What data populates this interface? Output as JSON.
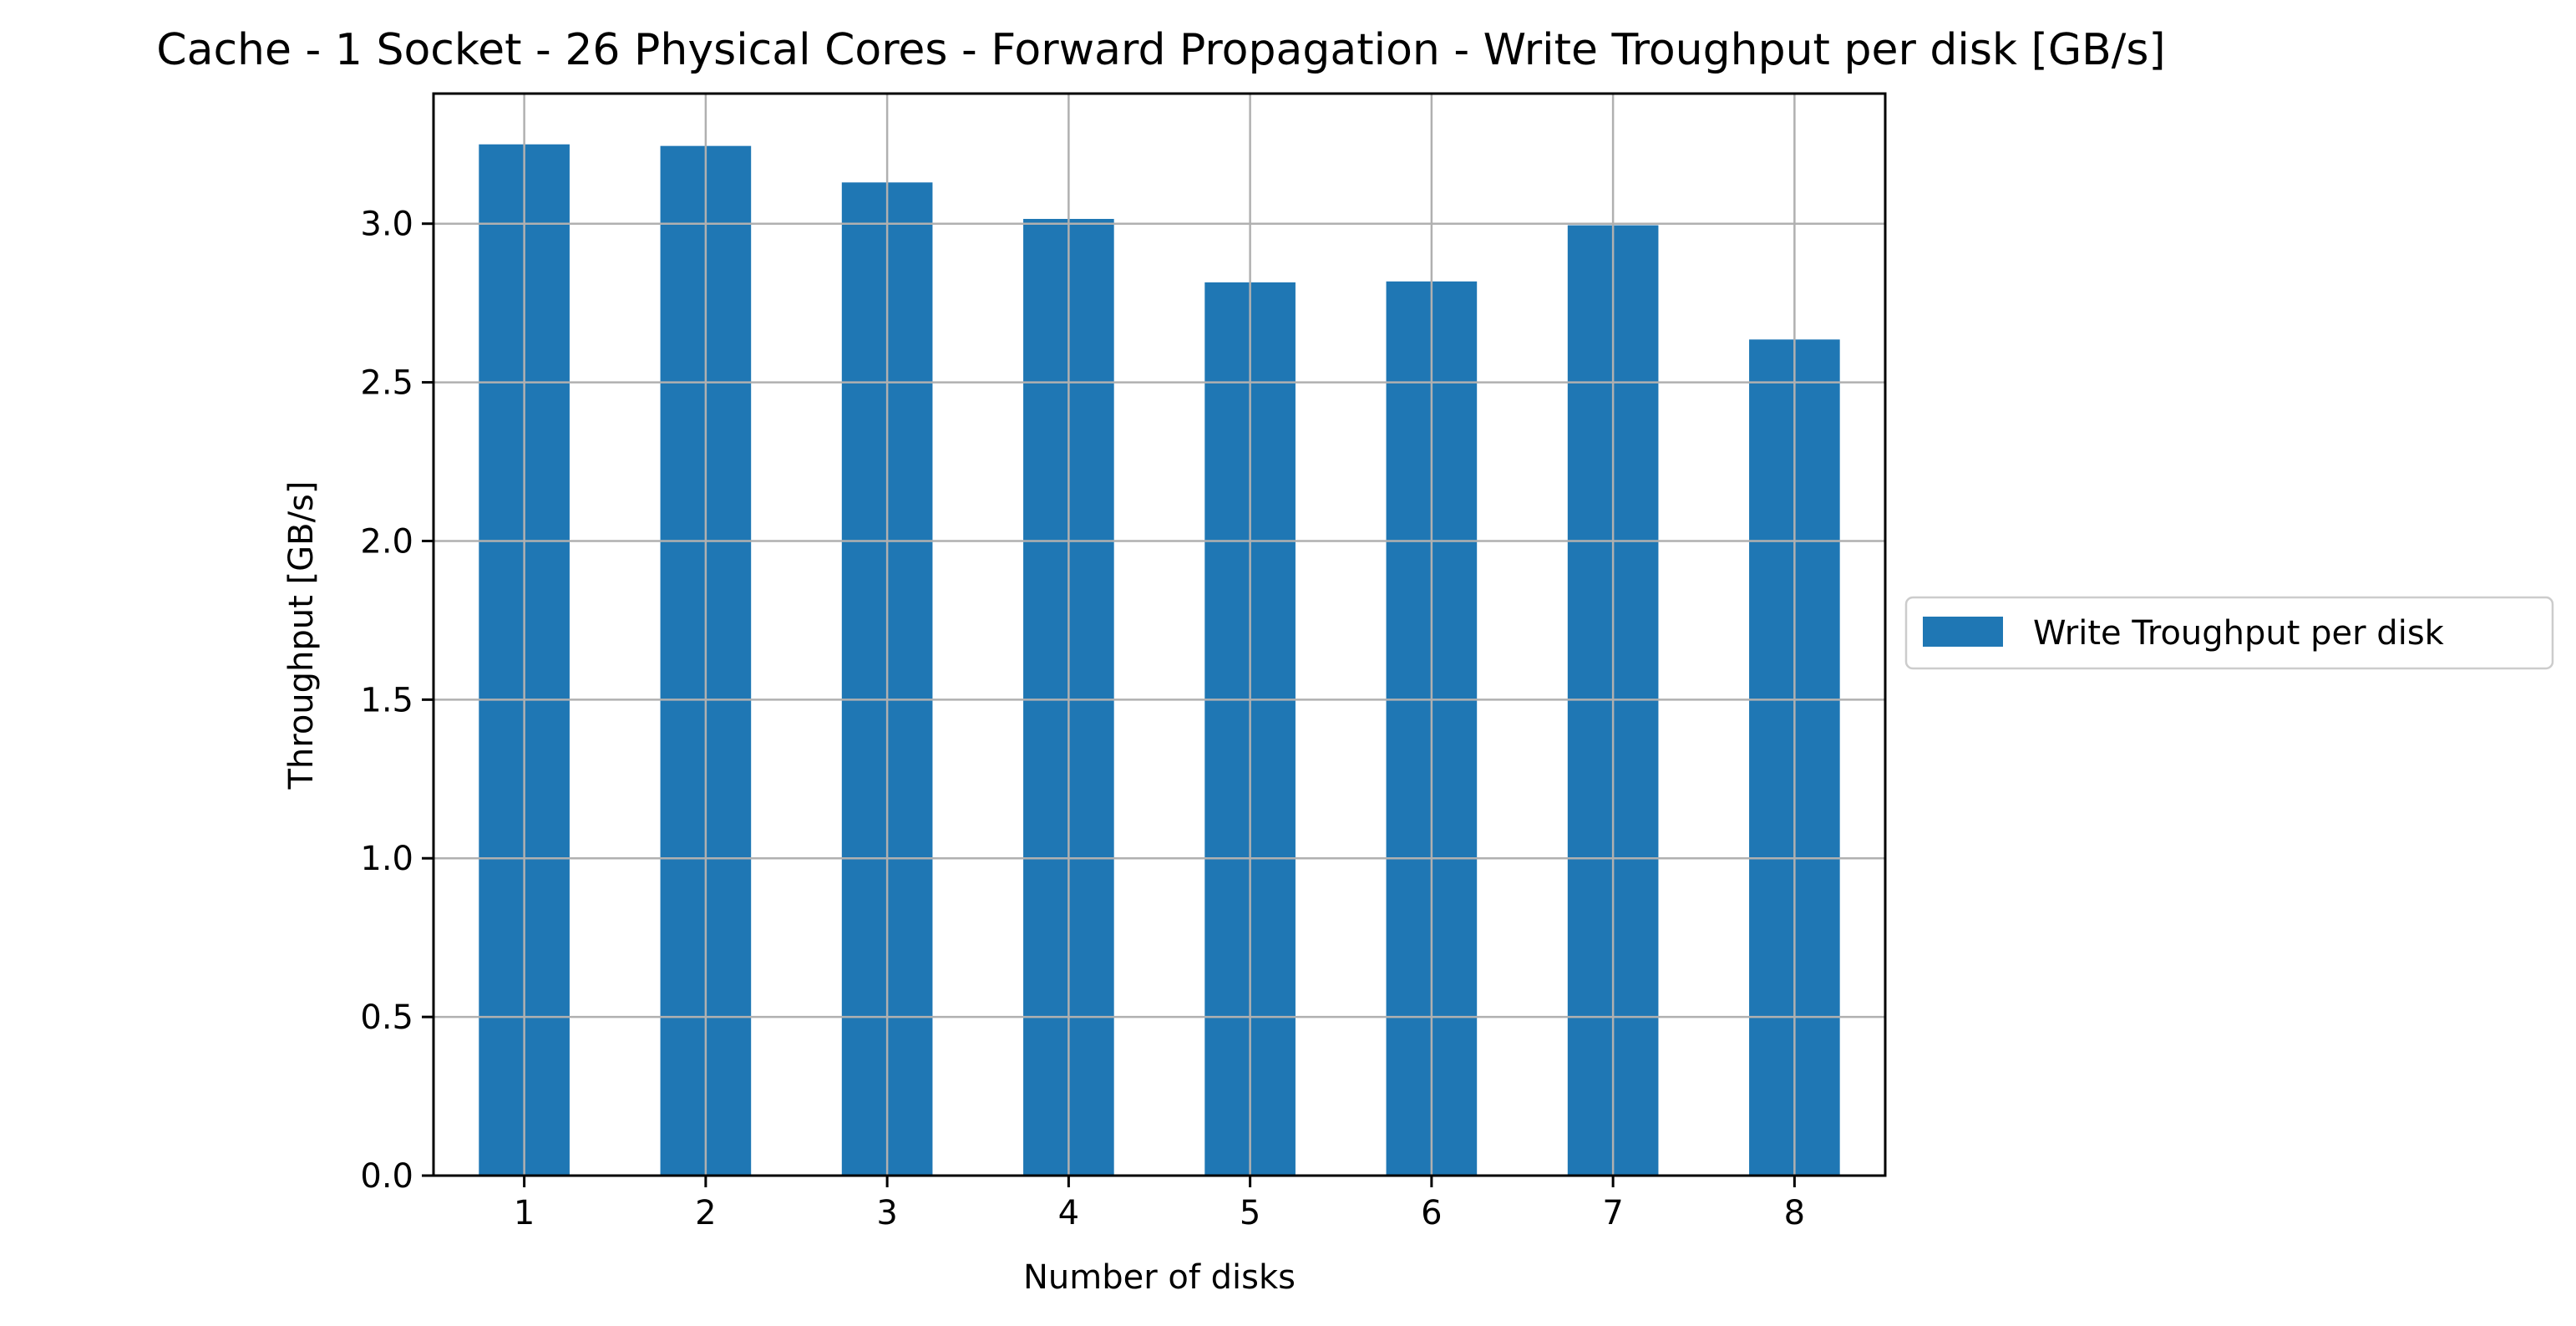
{
  "chart_data": {
    "type": "bar",
    "title": "Cache - 1 Socket - 26 Physical Cores - Forward Propagation - Write Troughput per disk [GB/s]",
    "xlabel": "Number of disks",
    "ylabel": "Throughput [GB/s]",
    "categories": [
      "1",
      "2",
      "3",
      "4",
      "5",
      "6",
      "7",
      "8"
    ],
    "series": [
      {
        "name": "Write Troughput per disk",
        "color": "#1f77b4",
        "values": [
          3.25,
          3.245,
          3.13,
          3.015,
          2.815,
          2.818,
          2.995,
          2.635
        ]
      }
    ],
    "ylim": [
      0,
      3.41
    ],
    "yticks": [
      "0.0",
      "0.5",
      "1.0",
      "1.5",
      "2.0",
      "2.5",
      "3.0"
    ],
    "grid": true,
    "legend": "center-right-outside"
  }
}
